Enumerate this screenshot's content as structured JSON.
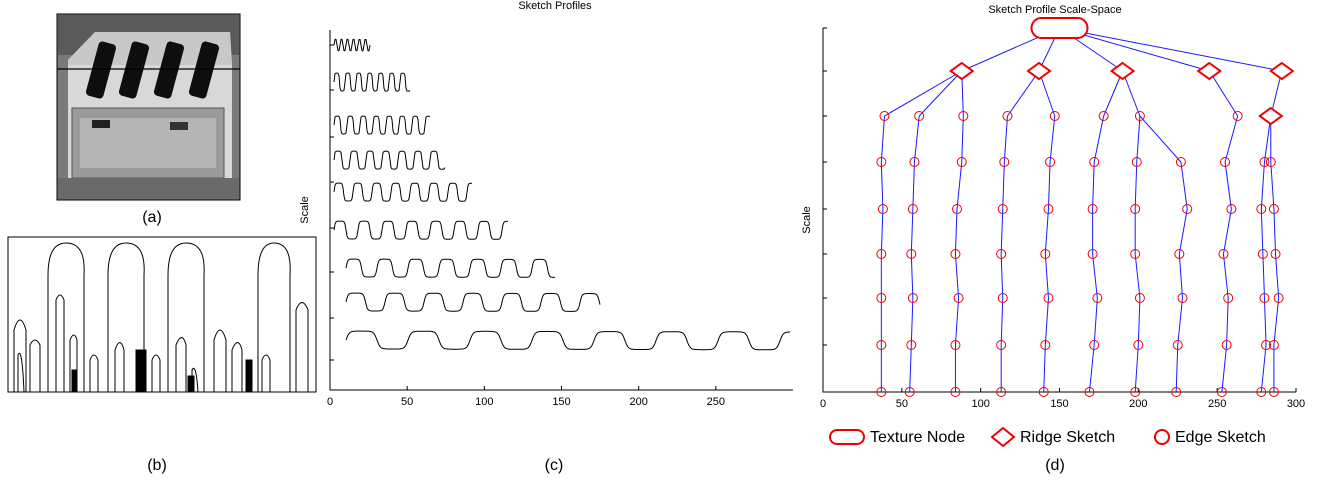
{
  "captions": {
    "a": "(a)",
    "b": "(b)",
    "c": "(c)",
    "d": "(d)"
  },
  "profiles": {
    "title": "Sketch Profiles",
    "y_label": "Scale",
    "xlim": [
      0,
      300
    ],
    "xticks": [
      0,
      50,
      100,
      150,
      200,
      250
    ]
  },
  "scale_space": {
    "title": "Sketch Profile Scale-Space",
    "y_label": "Scale",
    "xlim": [
      0,
      300
    ],
    "xticks": [
      0,
      50,
      100,
      150,
      200,
      250,
      300
    ],
    "legend": [
      "Texture Node",
      "Ridge Sketch",
      "Edge Sketch"
    ],
    "levels": [
      {
        "texture": [
          150
        ],
        "ridge": [],
        "edge": []
      },
      {
        "texture": [],
        "ridge": [
          88,
          137,
          190,
          245,
          291
        ],
        "edge": []
      },
      {
        "texture": [],
        "ridge": [
          284
        ],
        "edge": [
          39,
          61,
          89,
          117,
          147,
          178,
          201,
          263
        ]
      },
      {
        "texture": [],
        "ridge": [],
        "edge": [
          37,
          58,
          88,
          115,
          144,
          172,
          199,
          227,
          255,
          280,
          284
        ]
      },
      {
        "texture": [],
        "ridge": [],
        "edge": [
          38,
          57,
          85,
          114,
          143,
          171,
          198,
          231,
          259,
          278,
          286
        ]
      },
      {
        "texture": [],
        "ridge": [],
        "edge": [
          37,
          56,
          84,
          113,
          141,
          171,
          198,
          226,
          254,
          279,
          287
        ]
      },
      {
        "texture": [],
        "ridge": [],
        "edge": [
          37,
          57,
          86,
          114,
          143,
          174,
          201,
          228,
          257,
          280,
          289
        ]
      },
      {
        "texture": [],
        "ridge": [],
        "edge": [
          37,
          56,
          84,
          113,
          141,
          172,
          200,
          225,
          256,
          281,
          286
        ]
      },
      {
        "texture": [],
        "ridge": [],
        "edge": [
          37,
          55,
          84,
          113,
          140,
          169,
          198,
          224,
          253,
          278,
          286
        ]
      }
    ]
  }
}
